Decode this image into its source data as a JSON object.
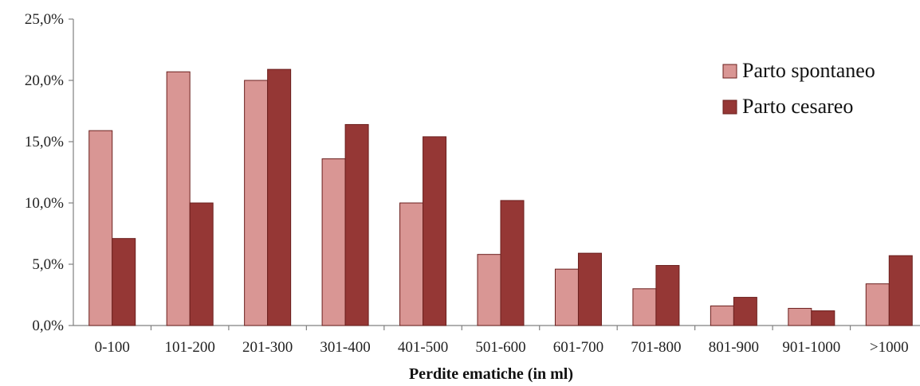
{
  "chart_data": {
    "type": "bar",
    "title": "",
    "xlabel": "Perdite ematiche (in ml)",
    "ylabel": "",
    "ylim": [
      0,
      25
    ],
    "y_ticks": [
      "0,0%",
      "5,0%",
      "10,0%",
      "15,0%",
      "20,0%",
      "25,0%"
    ],
    "y_tick_values": [
      0,
      5,
      10,
      15,
      20,
      25
    ],
    "categories": [
      "0-100",
      "101-200",
      "201-300",
      "301-400",
      "401-500",
      "501-600",
      "601-700",
      "701-800",
      "801-900",
      "901-1000",
      ">1000"
    ],
    "series": [
      {
        "name": "Parto spontaneo",
        "color": "#d99694",
        "values": [
          15.9,
          20.7,
          20.0,
          13.6,
          10.0,
          5.8,
          4.6,
          3.0,
          1.6,
          1.4,
          3.4
        ]
      },
      {
        "name": "Parto cesareo",
        "color": "#953735",
        "values": [
          7.1,
          10.0,
          20.9,
          16.4,
          15.4,
          10.2,
          5.9,
          4.9,
          2.3,
          1.2,
          5.7
        ]
      }
    ],
    "grid": false,
    "legend_position": "top-right"
  }
}
